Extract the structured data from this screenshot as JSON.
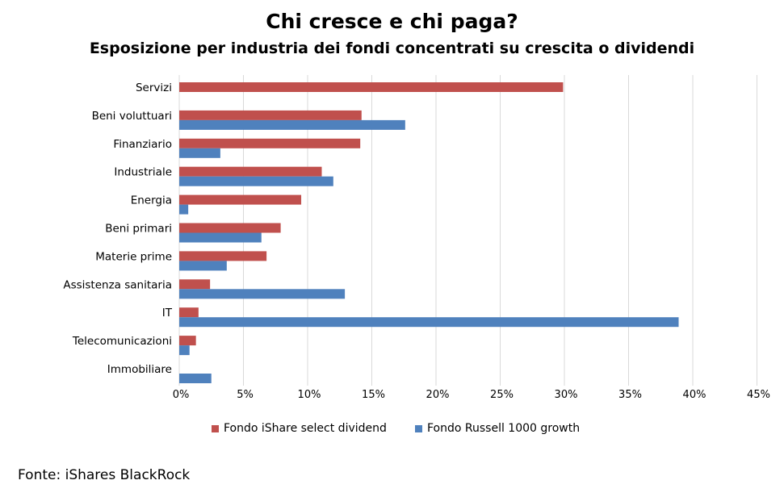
{
  "chart_data": {
    "type": "bar",
    "orientation": "horizontal",
    "title": "Chi cresce e chi paga?",
    "subtitle": "Esposizione per industria dei fondi concentrati su crescita o dividendi",
    "categories": [
      "Servizi",
      "Beni voluttuari",
      "Finanziario",
      "Industriale",
      "Energia",
      "Beni primari",
      "Materie prime",
      "Assistenza sanitaria",
      "IT",
      "Telecomunicazioni",
      "Immobiliare"
    ],
    "series": [
      {
        "name": "Fondo iShare select dividend",
        "color": "#c0504d",
        "values": [
          29.9,
          14.2,
          14.1,
          11.1,
          9.5,
          7.9,
          6.8,
          2.4,
          1.5,
          1.3,
          0
        ]
      },
      {
        "name": "Fondo Russell 1000 growth",
        "color": "#4f81bd",
        "values": [
          0,
          17.6,
          3.2,
          12.0,
          0.7,
          6.4,
          3.7,
          12.9,
          38.9,
          0.8,
          2.5
        ]
      }
    ],
    "xlim": [
      0,
      45
    ],
    "xticks": [
      "0%",
      "5%",
      "10%",
      "15%",
      "20%",
      "25%",
      "30%",
      "35%",
      "40%",
      "45%"
    ],
    "grid": true,
    "legend_position": "bottom"
  },
  "source": "Fonte: iShares BlackRock"
}
